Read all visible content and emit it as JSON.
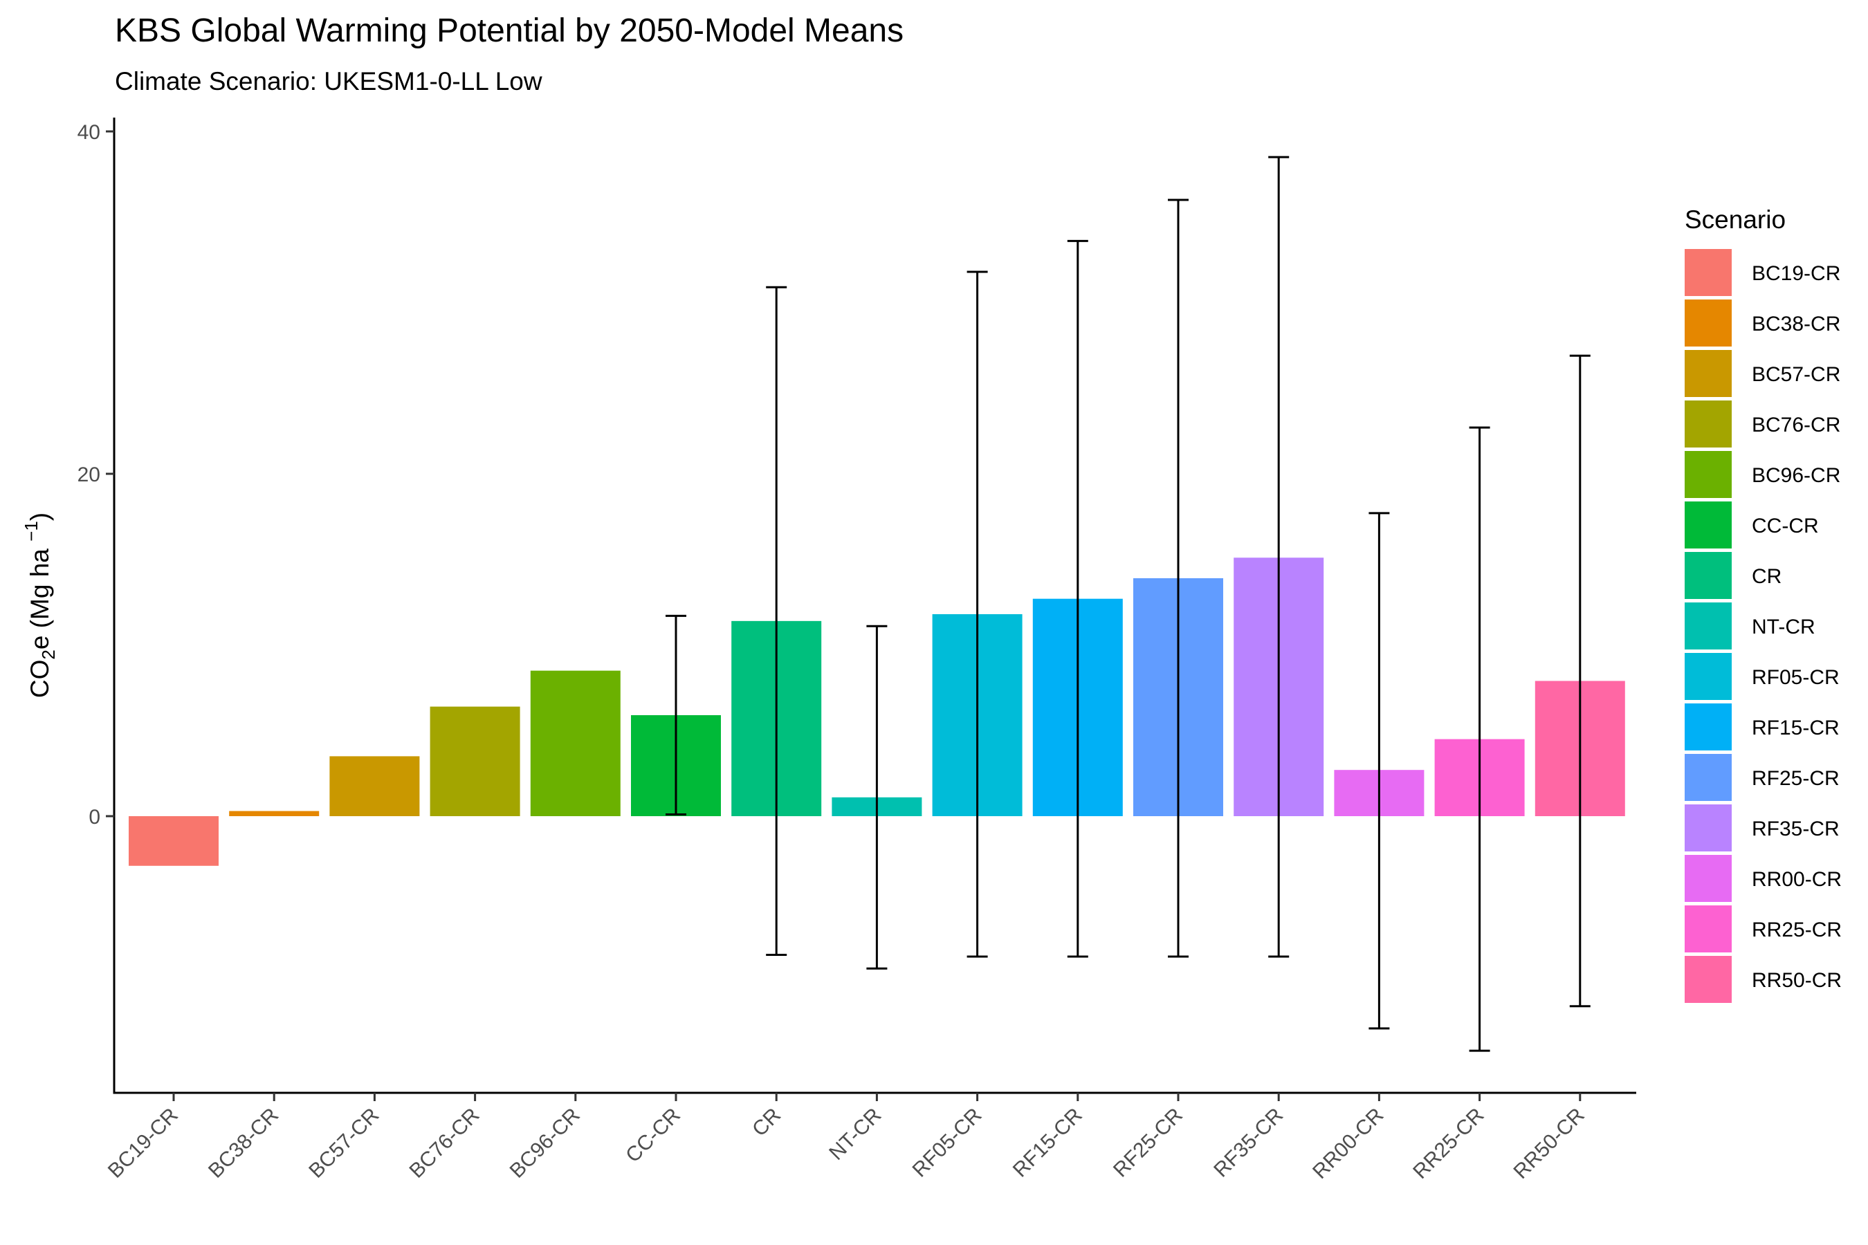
{
  "chart_data": {
    "type": "bar",
    "title": "KBS Global Warming Potential by 2050-Model Means",
    "subtitle": "Climate Scenario: UKESM1-0-LL Low",
    "ylabel_main": "CO",
    "ylabel_sub": "2",
    "ylabel_rest": "e (Mg ha ",
    "ylabel_sup": "−1",
    "ylabel_close": ")",
    "xlabel": "",
    "ylim": [
      -16.5,
      41.5
    ],
    "yticks": [
      0,
      20,
      40
    ],
    "grid": false,
    "legend": {
      "title": "Scenario",
      "placement": "right"
    },
    "categories": [
      "BC19-CR",
      "BC38-CR",
      "BC57-CR",
      "BC76-CR",
      "BC96-CR",
      "CC-CR",
      "CR",
      "NT-CR",
      "RF05-CR",
      "RF15-CR",
      "RF25-CR",
      "RF35-CR",
      "RR00-CR",
      "RR25-CR",
      "RR50-CR"
    ],
    "values": [
      -2.9,
      0.3,
      3.5,
      6.4,
      8.5,
      5.9,
      11.4,
      1.1,
      11.8,
      12.7,
      13.9,
      15.1,
      2.7,
      4.5,
      7.9
    ],
    "error_low": [
      null,
      null,
      null,
      null,
      null,
      0.1,
      -8.1,
      -8.9,
      -8.2,
      -8.2,
      -8.2,
      -8.2,
      -12.4,
      -13.7,
      -11.1
    ],
    "error_high": [
      null,
      null,
      null,
      null,
      null,
      11.7,
      30.9,
      11.1,
      31.8,
      33.6,
      36.0,
      38.5,
      17.7,
      22.7,
      26.9
    ],
    "colors": [
      "#F8766D",
      "#E58700",
      "#C99800",
      "#A3A500",
      "#6BB100",
      "#00BA38",
      "#00BF7D",
      "#00C0AF",
      "#00BCD8",
      "#00B0F6",
      "#619CFF",
      "#B983FF",
      "#E76BF3",
      "#FD61D1",
      "#FF67A4"
    ]
  }
}
